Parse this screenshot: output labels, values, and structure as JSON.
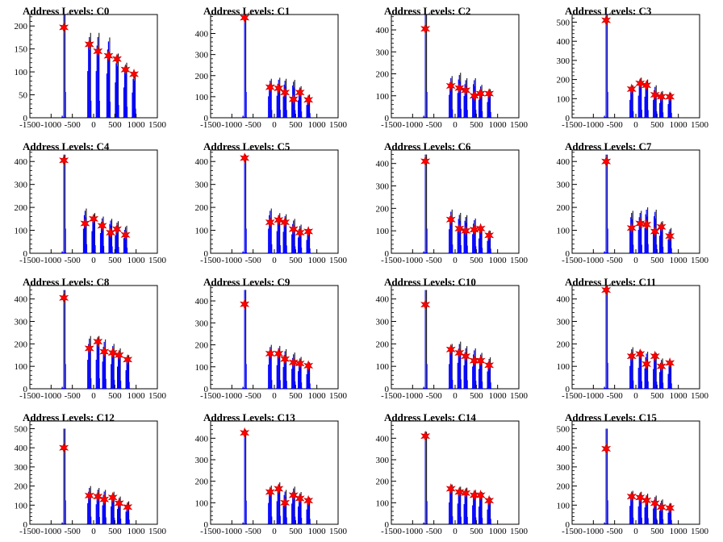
{
  "figure": {
    "background": "#ffffff",
    "histogram_color": "#0000ff",
    "marker_color": "#ff0000",
    "marker_stroke": "#cc0000",
    "axis_color": "#000000"
  },
  "chart_data": [
    {
      "type": "bar",
      "title": "Address Levels: C0",
      "xlabel": "",
      "ylabel": "",
      "xlim": [
        -1500,
        1500
      ],
      "ylim": [
        0,
        225
      ],
      "xticks": [
        -1500,
        -1000,
        -500,
        0,
        500,
        1000,
        1500
      ],
      "yticks": [
        0,
        50,
        100,
        150,
        200
      ],
      "peaks": [
        {
          "x": -700,
          "y": 225,
          "mark": 197
        },
        {
          "x": -100,
          "y": 185,
          "mark": 160
        },
        {
          "x": 100,
          "y": 185,
          "mark": 145
        },
        {
          "x": 350,
          "y": 175,
          "mark": 135
        },
        {
          "x": 550,
          "y": 140,
          "mark": 128
        },
        {
          "x": 750,
          "y": 120,
          "mark": 105
        },
        {
          "x": 950,
          "y": 100,
          "mark": 95
        }
      ]
    },
    {
      "type": "bar",
      "title": "Address Levels: C1",
      "xlabel": "",
      "ylabel": "",
      "xlim": [
        -1500,
        1500
      ],
      "ylim": [
        0,
        490
      ],
      "xticks": [
        -1500,
        -1000,
        -500,
        0,
        500,
        1000,
        1500
      ],
      "yticks": [
        0,
        100,
        200,
        300,
        400
      ],
      "peaks": [
        {
          "x": -700,
          "y": 490,
          "mark": 475
        },
        {
          "x": -100,
          "y": 185,
          "mark": 145
        },
        {
          "x": 100,
          "y": 190,
          "mark": 140
        },
        {
          "x": 250,
          "y": 185,
          "mark": 120
        },
        {
          "x": 450,
          "y": 180,
          "mark": 88
        },
        {
          "x": 600,
          "y": 150,
          "mark": 120
        },
        {
          "x": 800,
          "y": 110,
          "mark": 85
        }
      ]
    },
    {
      "type": "bar",
      "title": "Address Levels: C2",
      "xlabel": "",
      "ylabel": "",
      "xlim": [
        -1500,
        1500
      ],
      "ylim": [
        0,
        470
      ],
      "xticks": [
        -1500,
        -1000,
        -500,
        0,
        500,
        1000,
        1500
      ],
      "yticks": [
        0,
        100,
        200,
        300,
        400
      ],
      "peaks": [
        {
          "x": -700,
          "y": 470,
          "mark": 405
        },
        {
          "x": -100,
          "y": 190,
          "mark": 145
        },
        {
          "x": 100,
          "y": 205,
          "mark": 135
        },
        {
          "x": 250,
          "y": 180,
          "mark": 125
        },
        {
          "x": 450,
          "y": 180,
          "mark": 100
        },
        {
          "x": 600,
          "y": 150,
          "mark": 110
        },
        {
          "x": 800,
          "y": 130,
          "mark": 110
        }
      ]
    },
    {
      "type": "bar",
      "title": "Address Levels: C3",
      "xlabel": "",
      "ylabel": "",
      "xlim": [
        -1500,
        1500
      ],
      "ylim": [
        0,
        540
      ],
      "xticks": [
        -1500,
        -1000,
        -500,
        0,
        500,
        1000,
        1500
      ],
      "yticks": [
        0,
        100,
        200,
        300,
        400,
        500
      ],
      "peaks": [
        {
          "x": -700,
          "y": 540,
          "mark": 510
        },
        {
          "x": -100,
          "y": 170,
          "mark": 150
        },
        {
          "x": 100,
          "y": 210,
          "mark": 180
        },
        {
          "x": 250,
          "y": 200,
          "mark": 170
        },
        {
          "x": 450,
          "y": 170,
          "mark": 120
        },
        {
          "x": 600,
          "y": 140,
          "mark": 110
        },
        {
          "x": 800,
          "y": 130,
          "mark": 110
        }
      ]
    },
    {
      "type": "bar",
      "title": "Address Levels: C4",
      "xlabel": "",
      "ylabel": "",
      "xlim": [
        -1500,
        1500
      ],
      "ylim": [
        0,
        450
      ],
      "xticks": [
        -1500,
        -1000,
        -500,
        0,
        500,
        1000,
        1500
      ],
      "yticks": [
        0,
        100,
        200,
        300,
        400
      ],
      "peaks": [
        {
          "x": -700,
          "y": 430,
          "mark": 405
        },
        {
          "x": -200,
          "y": 195,
          "mark": 130
        },
        {
          "x": 0,
          "y": 175,
          "mark": 150
        },
        {
          "x": 200,
          "y": 160,
          "mark": 120
        },
        {
          "x": 400,
          "y": 150,
          "mark": 90
        },
        {
          "x": 550,
          "y": 140,
          "mark": 105
        },
        {
          "x": 750,
          "y": 120,
          "mark": 80
        }
      ]
    },
    {
      "type": "bar",
      "title": "Address Levels: C5",
      "xlabel": "",
      "ylabel": "",
      "xlim": [
        -1500,
        1500
      ],
      "ylim": [
        0,
        450
      ],
      "xticks": [
        -1500,
        -1000,
        -500,
        0,
        500,
        1000,
        1500
      ],
      "yticks": [
        0,
        100,
        200,
        300,
        400
      ],
      "peaks": [
        {
          "x": -700,
          "y": 430,
          "mark": 415
        },
        {
          "x": -100,
          "y": 195,
          "mark": 135
        },
        {
          "x": 100,
          "y": 175,
          "mark": 145
        },
        {
          "x": 250,
          "y": 170,
          "mark": 135
        },
        {
          "x": 450,
          "y": 150,
          "mark": 105
        },
        {
          "x": 600,
          "y": 125,
          "mark": 90
        },
        {
          "x": 800,
          "y": 105,
          "mark": 95
        }
      ]
    },
    {
      "type": "bar",
      "title": "Address Levels: C6",
      "xlabel": "",
      "ylabel": "",
      "xlim": [
        -1500,
        1500
      ],
      "ylim": [
        0,
        460
      ],
      "xticks": [
        -1500,
        -1000,
        -500,
        0,
        500,
        1000,
        1500
      ],
      "yticks": [
        0,
        100,
        200,
        300,
        400
      ],
      "peaks": [
        {
          "x": -700,
          "y": 440,
          "mark": 410
        },
        {
          "x": -100,
          "y": 195,
          "mark": 150
        },
        {
          "x": 100,
          "y": 180,
          "mark": 110
        },
        {
          "x": 250,
          "y": 170,
          "mark": 100
        },
        {
          "x": 450,
          "y": 155,
          "mark": 105
        },
        {
          "x": 600,
          "y": 120,
          "mark": 110
        },
        {
          "x": 800,
          "y": 100,
          "mark": 80
        }
      ]
    },
    {
      "type": "bar",
      "title": "Address Levels: C7",
      "xlabel": "",
      "ylabel": "",
      "xlim": [
        -1500,
        1500
      ],
      "ylim": [
        0,
        450
      ],
      "xticks": [
        -1500,
        -1000,
        -500,
        0,
        500,
        1000,
        1500
      ],
      "yticks": [
        0,
        100,
        200,
        300,
        400
      ],
      "peaks": [
        {
          "x": -700,
          "y": 430,
          "mark": 400
        },
        {
          "x": -100,
          "y": 185,
          "mark": 110
        },
        {
          "x": 100,
          "y": 185,
          "mark": 130
        },
        {
          "x": 250,
          "y": 200,
          "mark": 125
        },
        {
          "x": 450,
          "y": 190,
          "mark": 95
        },
        {
          "x": 600,
          "y": 140,
          "mark": 115
        },
        {
          "x": 800,
          "y": 110,
          "mark": 75
        }
      ]
    },
    {
      "type": "bar",
      "title": "Address Levels: C8",
      "xlabel": "",
      "ylabel": "",
      "xlim": [
        -1500,
        1500
      ],
      "ylim": [
        0,
        460
      ],
      "xticks": [
        -1500,
        -1000,
        -500,
        0,
        500,
        1000,
        1500
      ],
      "yticks": [
        0,
        100,
        200,
        300,
        400
      ],
      "peaks": [
        {
          "x": -700,
          "y": 440,
          "mark": 405
        },
        {
          "x": -100,
          "y": 235,
          "mark": 180
        },
        {
          "x": 100,
          "y": 235,
          "mark": 210
        },
        {
          "x": 250,
          "y": 220,
          "mark": 165
        },
        {
          "x": 450,
          "y": 200,
          "mark": 160
        },
        {
          "x": 600,
          "y": 180,
          "mark": 150
        },
        {
          "x": 800,
          "y": 150,
          "mark": 130
        }
      ]
    },
    {
      "type": "bar",
      "title": "Address Levels: C9",
      "xlabel": "",
      "ylabel": "",
      "xlim": [
        -1500,
        1500
      ],
      "ylim": [
        0,
        470
      ],
      "xticks": [
        -1500,
        -1000,
        -500,
        0,
        500,
        1000,
        1500
      ],
      "yticks": [
        0,
        100,
        200,
        300,
        400
      ],
      "peaks": [
        {
          "x": -700,
          "y": 450,
          "mark": 385
        },
        {
          "x": -100,
          "y": 200,
          "mark": 160
        },
        {
          "x": 100,
          "y": 195,
          "mark": 160
        },
        {
          "x": 250,
          "y": 180,
          "mark": 135
        },
        {
          "x": 450,
          "y": 165,
          "mark": 120
        },
        {
          "x": 600,
          "y": 145,
          "mark": 115
        },
        {
          "x": 800,
          "y": 120,
          "mark": 105
        }
      ]
    },
    {
      "type": "bar",
      "title": "Address Levels: C10",
      "xlabel": "",
      "ylabel": "",
      "xlim": [
        -1500,
        1500
      ],
      "ylim": [
        0,
        460
      ],
      "xticks": [
        -1500,
        -1000,
        -500,
        0,
        500,
        1000,
        1500
      ],
      "yticks": [
        0,
        100,
        200,
        300,
        400
      ],
      "peaks": [
        {
          "x": -700,
          "y": 440,
          "mark": 375
        },
        {
          "x": -100,
          "y": 200,
          "mark": 175
        },
        {
          "x": 100,
          "y": 210,
          "mark": 160
        },
        {
          "x": 250,
          "y": 190,
          "mark": 145
        },
        {
          "x": 450,
          "y": 180,
          "mark": 125
        },
        {
          "x": 600,
          "y": 160,
          "mark": 125
        },
        {
          "x": 800,
          "y": 140,
          "mark": 105
        }
      ]
    },
    {
      "type": "bar",
      "title": "Address Levels: C11",
      "xlabel": "",
      "ylabel": "",
      "xlim": [
        -1500,
        1500
      ],
      "ylim": [
        0,
        460
      ],
      "xticks": [
        -1500,
        -1000,
        -500,
        0,
        500,
        1000,
        1500
      ],
      "yticks": [
        0,
        100,
        200,
        300,
        400
      ],
      "peaks": [
        {
          "x": -700,
          "y": 460,
          "mark": 440
        },
        {
          "x": -100,
          "y": 185,
          "mark": 145
        },
        {
          "x": 100,
          "y": 170,
          "mark": 155
        },
        {
          "x": 250,
          "y": 165,
          "mark": 110
        },
        {
          "x": 450,
          "y": 160,
          "mark": 145
        },
        {
          "x": 600,
          "y": 135,
          "mark": 100
        },
        {
          "x": 800,
          "y": 120,
          "mark": 115
        }
      ]
    },
    {
      "type": "bar",
      "title": "Address Levels: C12",
      "xlabel": "",
      "ylabel": "",
      "xlim": [
        -1500,
        1500
      ],
      "ylim": [
        0,
        540
      ],
      "xticks": [
        -1500,
        -1000,
        -500,
        0,
        500,
        1000,
        1500
      ],
      "yticks": [
        0,
        100,
        200,
        300,
        400,
        500
      ],
      "peaks": [
        {
          "x": -700,
          "y": 500,
          "mark": 400
        },
        {
          "x": -100,
          "y": 200,
          "mark": 150
        },
        {
          "x": 100,
          "y": 190,
          "mark": 145
        },
        {
          "x": 250,
          "y": 180,
          "mark": 130
        },
        {
          "x": 450,
          "y": 170,
          "mark": 140
        },
        {
          "x": 600,
          "y": 145,
          "mark": 110
        },
        {
          "x": 800,
          "y": 120,
          "mark": 90
        }
      ]
    },
    {
      "type": "bar",
      "title": "Address Levels: C13",
      "xlabel": "",
      "ylabel": "",
      "xlim": [
        -1500,
        1500
      ],
      "ylim": [
        0,
        480
      ],
      "xticks": [
        -1500,
        -1000,
        -500,
        0,
        500,
        1000,
        1500
      ],
      "yticks": [
        0,
        100,
        200,
        300,
        400
      ],
      "peaks": [
        {
          "x": -700,
          "y": 440,
          "mark": 425
        },
        {
          "x": -100,
          "y": 180,
          "mark": 150
        },
        {
          "x": 100,
          "y": 195,
          "mark": 165
        },
        {
          "x": 250,
          "y": 160,
          "mark": 100
        },
        {
          "x": 450,
          "y": 175,
          "mark": 135
        },
        {
          "x": 600,
          "y": 150,
          "mark": 120
        },
        {
          "x": 800,
          "y": 125,
          "mark": 110
        }
      ]
    },
    {
      "type": "bar",
      "title": "Address Levels: C14",
      "xlabel": "",
      "ylabel": "",
      "xlim": [
        -1500,
        1500
      ],
      "ylim": [
        0,
        480
      ],
      "xticks": [
        -1500,
        -1000,
        -500,
        0,
        500,
        1000,
        1500
      ],
      "yticks": [
        0,
        100,
        200,
        300,
        400
      ],
      "peaks": [
        {
          "x": -700,
          "y": 430,
          "mark": 410
        },
        {
          "x": -100,
          "y": 185,
          "mark": 165
        },
        {
          "x": 100,
          "y": 175,
          "mark": 150
        },
        {
          "x": 250,
          "y": 170,
          "mark": 145
        },
        {
          "x": 450,
          "y": 160,
          "mark": 135
        },
        {
          "x": 600,
          "y": 150,
          "mark": 135
        },
        {
          "x": 800,
          "y": 125,
          "mark": 110
        }
      ]
    },
    {
      "type": "bar",
      "title": "Address Levels: C15",
      "xlabel": "",
      "ylabel": "",
      "xlim": [
        -1500,
        1500
      ],
      "ylim": [
        0,
        540
      ],
      "xticks": [
        -1500,
        -1000,
        -500,
        0,
        500,
        1000,
        1500
      ],
      "yticks": [
        0,
        100,
        200,
        300,
        400,
        500
      ],
      "peaks": [
        {
          "x": -700,
          "y": 500,
          "mark": 395
        },
        {
          "x": -100,
          "y": 175,
          "mark": 145
        },
        {
          "x": 100,
          "y": 170,
          "mark": 140
        },
        {
          "x": 250,
          "y": 160,
          "mark": 125
        },
        {
          "x": 450,
          "y": 150,
          "mark": 110
        },
        {
          "x": 600,
          "y": 130,
          "mark": 90
        },
        {
          "x": 800,
          "y": 110,
          "mark": 85
        }
      ]
    }
  ]
}
